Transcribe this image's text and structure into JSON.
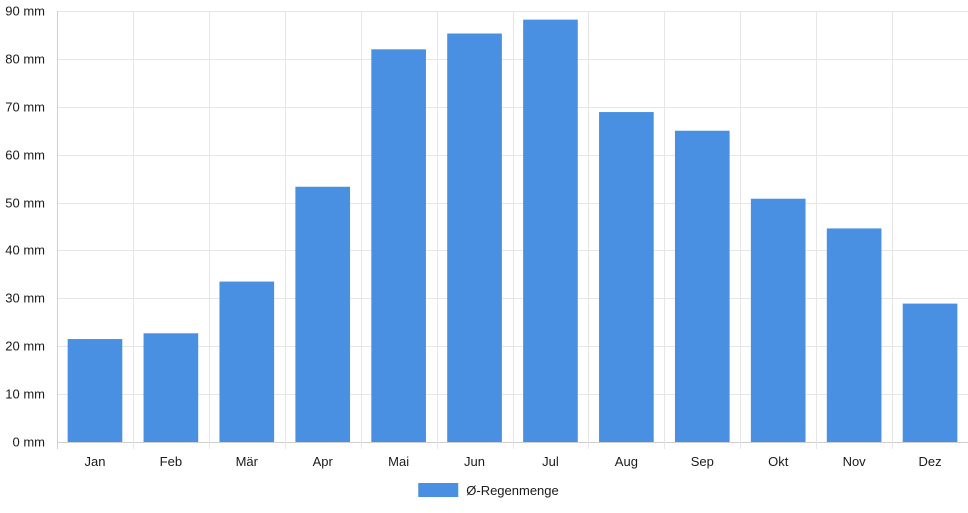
{
  "chart_data": {
    "type": "bar",
    "categories": [
      "Jan",
      "Feb",
      "Mär",
      "Apr",
      "Mai",
      "Jun",
      "Jul",
      "Aug",
      "Sep",
      "Okt",
      "Nov",
      "Dez"
    ],
    "series": [
      {
        "name": "Ø-Regenmenge",
        "color": "#4a90e2",
        "values": [
          21.5,
          22.7,
          33.5,
          53.3,
          82.0,
          85.3,
          88.2,
          68.9,
          65.0,
          50.8,
          44.6,
          28.9
        ]
      }
    ],
    "y_ticks": [
      "0 mm",
      "10 mm",
      "20 mm",
      "30 mm",
      "40 mm",
      "50 mm",
      "60 mm",
      "70 mm",
      "80 mm",
      "90 mm"
    ],
    "ylim": [
      0,
      90
    ],
    "y_step": 10,
    "grid": true,
    "legend_position": "bottom"
  }
}
